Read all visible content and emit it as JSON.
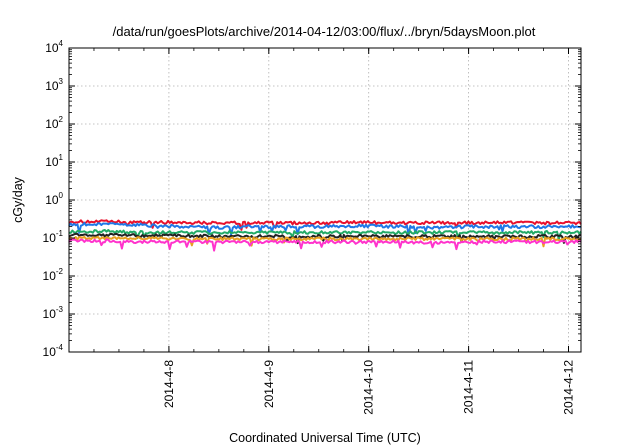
{
  "chart_data": {
    "type": "line",
    "title": "/data/run/goesPlots/archive/2014-04-12/03:00/flux/../bryn/5daysMoon.plot",
    "xlabel": "Coordinated Universal Time (UTC)",
    "ylabel": "cGy/day",
    "scale_y": "log",
    "grid": true,
    "legend": "none",
    "xlim": [
      "2014-04-07T00:00",
      "2014-04-12T03:00"
    ],
    "ylim": [
      0.0001,
      10000
    ],
    "x_ticks": [
      {
        "value": "2014-04-08T00:00",
        "label": "2014-4-8"
      },
      {
        "value": "2014-04-09T00:00",
        "label": "2014-4-9"
      },
      {
        "value": "2014-04-10T00:00",
        "label": "2014-4-10"
      },
      {
        "value": "2014-04-11T00:00",
        "label": "2014-4-11"
      },
      {
        "value": "2014-04-12T00:00",
        "label": "2014-4-12"
      }
    ],
    "y_ticks": [
      {
        "value": 0.0001,
        "base": "10",
        "exp": "-4"
      },
      {
        "value": 0.001,
        "base": "10",
        "exp": "-3"
      },
      {
        "value": 0.01,
        "base": "10",
        "exp": "-2"
      },
      {
        "value": 0.1,
        "base": "10",
        "exp": "-1"
      },
      {
        "value": 1,
        "base": "10",
        "exp": "0"
      },
      {
        "value": 10,
        "base": "10",
        "exp": "1"
      },
      {
        "value": 100,
        "base": "10",
        "exp": "2"
      },
      {
        "value": 1000,
        "base": "10",
        "exp": "3"
      },
      {
        "value": 10000,
        "base": "10",
        "exp": "4"
      }
    ],
    "series": [
      {
        "color": "#e8112d",
        "values": [
          0.27,
          0.27,
          0.26,
          0.26,
          0.25,
          0.25,
          0.25,
          0.25,
          0.26,
          0.25,
          0.25,
          0.25,
          0.26,
          0.25,
          0.25
        ]
      },
      {
        "color": "#1f78e6",
        "values": [
          0.23,
          0.23,
          0.22,
          0.2,
          0.19,
          0.2,
          0.2,
          0.2,
          0.21,
          0.2,
          0.19,
          0.2,
          0.2,
          0.2,
          0.2
        ]
      },
      {
        "color": "#22aa66",
        "values": [
          0.15,
          0.15,
          0.14,
          0.14,
          0.14,
          0.14,
          0.14,
          0.14,
          0.14,
          0.14,
          0.14,
          0.14,
          0.14,
          0.14,
          0.14
        ]
      },
      {
        "color": "#222222",
        "values": [
          0.12,
          0.12,
          0.115,
          0.115,
          0.11,
          0.11,
          0.11,
          0.11,
          0.115,
          0.11,
          0.11,
          0.11,
          0.11,
          0.11,
          0.11
        ]
      },
      {
        "color": "#e8a020",
        "values": [
          0.1,
          0.1,
          0.1,
          0.095,
          0.095,
          0.095,
          0.095,
          0.095,
          0.095,
          0.095,
          0.095,
          0.095,
          0.095,
          0.095,
          0.095
        ]
      },
      {
        "color": "#ff33cc",
        "values": [
          0.085,
          0.085,
          0.08,
          0.08,
          0.08,
          0.08,
          0.08,
          0.08,
          0.08,
          0.08,
          0.075,
          0.08,
          0.08,
          0.08,
          0.08
        ]
      }
    ]
  }
}
